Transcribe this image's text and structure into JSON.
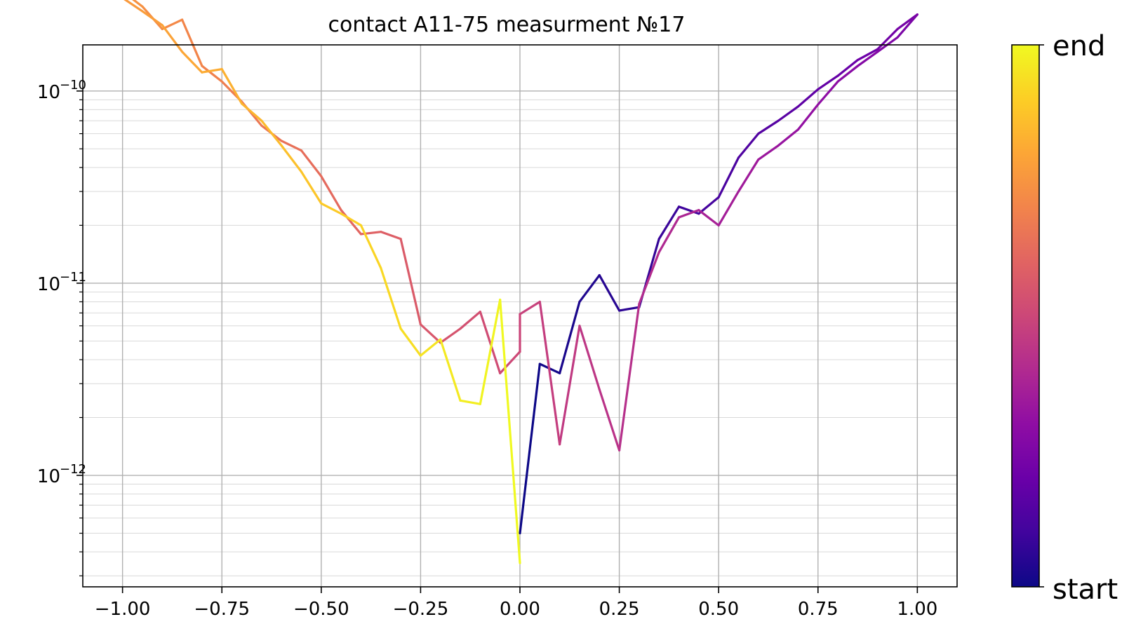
{
  "chart_data": {
    "type": "line",
    "title": "contact A11-75 measurment №17",
    "xlabel": "",
    "ylabel": "",
    "x_scale": "linear",
    "y_scale": "log",
    "xlim": [
      -1.1,
      1.1
    ],
    "ylim_exponent": [
      -12.58,
      -9.76
    ],
    "x_ticks": [
      -1.0,
      -0.75,
      -0.5,
      -0.25,
      0.0,
      0.25,
      0.5,
      0.75,
      1.0
    ],
    "x_tick_labels": [
      "−1.00",
      "−0.75",
      "−0.50",
      "−0.25",
      "0.00",
      "0.25",
      "0.50",
      "0.75",
      "1.00"
    ],
    "y_ticks_exponent": [
      -12,
      -11,
      -10
    ],
    "y_tick_labels": [
      {
        "base": "10",
        "exp": "−12"
      },
      {
        "base": "10",
        "exp": "−11"
      },
      {
        "base": "10",
        "exp": "−10"
      }
    ],
    "grid": true,
    "colormap": "plasma",
    "colorbar": {
      "label_top": "end",
      "label_bottom": "start"
    },
    "series_color_position": "time (start → end)",
    "points": {
      "x": [
        0.0,
        0.05,
        0.1,
        0.15,
        0.2,
        0.25,
        0.3,
        0.35,
        0.4,
        0.45,
        0.5,
        0.55,
        0.6,
        0.65,
        0.7,
        0.75,
        0.8,
        0.85,
        0.9,
        0.95,
        1.0,
        0.95,
        0.9,
        0.85,
        0.8,
        0.75,
        0.7,
        0.65,
        0.6,
        0.55,
        0.5,
        0.45,
        0.4,
        0.35,
        0.3,
        0.25,
        0.2,
        0.15,
        0.1,
        0.05,
        0.0,
        0.0,
        -0.05,
        -0.1,
        -0.15,
        -0.2,
        -0.25,
        -0.3,
        -0.35,
        -0.4,
        -0.45,
        -0.5,
        -0.55,
        -0.6,
        -0.65,
        -0.7,
        -0.75,
        -0.8,
        -0.85,
        -0.9,
        -0.95,
        -1.0,
        -1.0,
        -0.95,
        -0.9,
        -0.85,
        -0.8,
        -0.75,
        -0.7,
        -0.65,
        -0.6,
        -0.55,
        -0.5,
        -0.45,
        -0.4,
        -0.35,
        -0.3,
        -0.25,
        -0.2,
        -0.15,
        -0.1,
        -0.05,
        0.0
      ],
      "y": [
        5e-13,
        3.8e-12,
        3.4e-12,
        8e-12,
        1.1e-11,
        7.2e-12,
        7.5e-12,
        1.7e-11,
        2.5e-11,
        2.3e-11,
        2.8e-11,
        4.5e-11,
        6e-11,
        7e-11,
        8.3e-11,
        1.02e-10,
        1.2e-10,
        1.45e-10,
        1.65e-10,
        2.1e-10,
        2.5e-10,
        1.9e-10,
        1.6e-10,
        1.35e-10,
        1.12e-10,
        8.5e-11,
        6.3e-11,
        5.2e-11,
        4.4e-11,
        3e-11,
        2e-11,
        2.4e-11,
        2.2e-11,
        1.45e-11,
        7.8e-12,
        1.35e-12,
        2.8e-12,
        6e-12,
        1.45e-12,
        8e-12,
        6.9e-12,
        4.4e-12,
        3.4e-12,
        7.1e-12,
        5.8e-12,
        4.9e-12,
        6.1e-12,
        1.7e-11,
        1.85e-11,
        1.8e-11,
        2.4e-11,
        3.6e-11,
        4.9e-11,
        5.5e-11,
        6.6e-11,
        8.8e-11,
        1.12e-10,
        1.35e-10,
        2.35e-10,
        2.1e-10,
        2.75e-10,
        3.3e-10,
        3.05e-10,
        2.6e-10,
        2.2e-10,
        1.6e-10,
        1.25e-10,
        1.3e-10,
        8.6e-11,
        7e-11,
        5.2e-11,
        3.8e-11,
        2.6e-11,
        2.3e-11,
        2e-11,
        1.2e-11,
        5.8e-12,
        4.2e-12,
        5.1e-12,
        2.45e-12,
        2.35e-12,
        8.2e-12,
        3.5e-13
      ]
    }
  }
}
